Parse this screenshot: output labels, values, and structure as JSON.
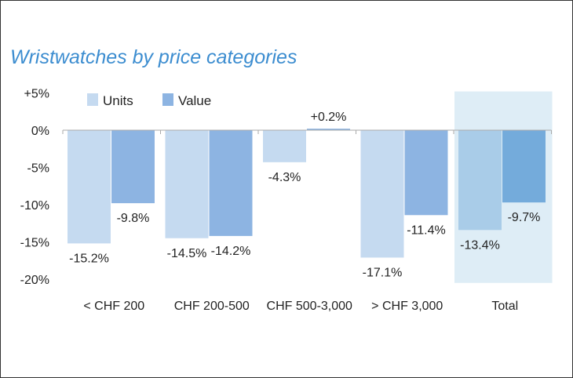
{
  "chart_data": {
    "type": "bar",
    "title": "Wristwatches by price categories",
    "categories": [
      "< CHF 200",
      "CHF 200-500",
      "CHF 500-3,000",
      "> CHF 3,000",
      "Total"
    ],
    "series": [
      {
        "name": "Units",
        "values": [
          -15.2,
          -14.5,
          -4.3,
          -17.1,
          -13.4
        ],
        "labels": [
          "-15.2%",
          "-14.5%",
          "-4.3%",
          "-17.1%",
          "-13.4%"
        ],
        "color": "#c5daf0",
        "highlight_color": "#a9cce8"
      },
      {
        "name": "Value",
        "values": [
          -9.8,
          -14.2,
          0.2,
          -11.4,
          -9.7
        ],
        "labels": [
          "-9.8%",
          "-14.2%",
          "+0.2%",
          "-11.4%",
          "-9.7%"
        ],
        "color": "#8db4e2",
        "highlight_color": "#74abdb"
      }
    ],
    "yticks": [
      5,
      0,
      -5,
      -10,
      -15,
      -20
    ],
    "ytick_labels": [
      "+5%",
      "0%",
      "-5%",
      "-10%",
      "-15%",
      "-20%"
    ],
    "ylim": [
      -20,
      5
    ],
    "highlighted_category": "Total",
    "highlight_color": "#deedf6",
    "legend": "top-left",
    "xlabel": "",
    "ylabel": ""
  }
}
